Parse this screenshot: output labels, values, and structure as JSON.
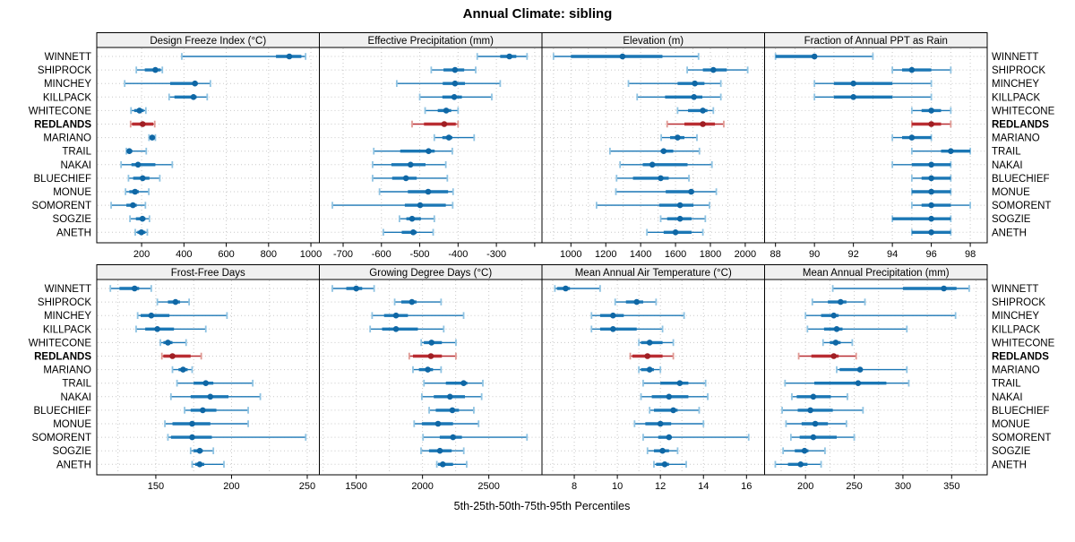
{
  "title": "Annual Climate: sibling",
  "footer": "5th-25th-50th-75th-95th Percentiles",
  "colors": {
    "blue_main": "#1b77b5",
    "blue_light": "#8fc3e2",
    "blue_dot": "#0f67a5",
    "red_main": "#b92d32",
    "red_light": "#e09a94",
    "red_dot": "#a01f24",
    "grid": "#c8c8c8",
    "panel_border": "#000000",
    "strip_bg": "#f0f0f0"
  },
  "chart_data": {
    "type": "trellis-percentile-dotplot",
    "title": "Annual Climate: sibling",
    "footer": "5th-25th-50th-75th-95th Percentiles",
    "legend_note": "each row shows 5th-25th-50th-75th-95th percentiles; REDLANDS highlighted red",
    "grid": "dotted",
    "stations": [
      "WINNETT",
      "SHIPROCK",
      "MINCHEY",
      "KILLPACK",
      "WHITECONE",
      "REDLANDS",
      "MARIANO",
      "TRAIL",
      "NAKAI",
      "BLUECHIEF",
      "MONUE",
      "SOMORENT",
      "SOGZIE",
      "ANETH"
    ],
    "highlight_station": "REDLANDS",
    "panels": [
      {
        "title": "Design Freeze Index (°C)",
        "xlim": [
          -12,
          1040
        ],
        "ticks": [
          200,
          400,
          600,
          800,
          1000
        ],
        "gridlines": [
          200,
          400,
          600,
          800,
          1000
        ],
        "ticks_unlabeled": [],
        "values": [
          [
            390,
            835,
            898,
            955,
            975
          ],
          [
            175,
            215,
            265,
            290,
            298
          ],
          [
            120,
            335,
            452,
            465,
            525
          ],
          [
            330,
            355,
            445,
            460,
            510
          ],
          [
            150,
            165,
            190,
            210,
            220
          ],
          [
            148,
            155,
            205,
            255,
            262
          ],
          [
            235,
            242,
            250,
            260,
            265
          ],
          [
            128,
            132,
            142,
            156,
            222
          ],
          [
            103,
            152,
            183,
            265,
            345
          ],
          [
            138,
            160,
            205,
            237,
            286
          ],
          [
            124,
            142,
            169,
            187,
            234
          ],
          [
            56,
            128,
            159,
            177,
            218
          ],
          [
            145,
            173,
            204,
            218,
            237
          ],
          [
            170,
            180,
            199,
            218,
            227
          ]
        ]
      },
      {
        "title": "Effective Precipitation (mm)",
        "xlim": [
          -762,
          -181
        ],
        "ticks": [
          -700,
          -600,
          -500,
          -400,
          -300
        ],
        "gridlines": [
          -700,
          -600,
          -500,
          -400,
          -300,
          -200
        ],
        "ticks_unlabeled": [
          -200
        ],
        "values": [
          [
            -350,
            -290,
            -266,
            -248,
            -220
          ],
          [
            -470,
            -438,
            -408,
            -384,
            -354
          ],
          [
            -560,
            -440,
            -408,
            -382,
            -290
          ],
          [
            -500,
            -441,
            -410,
            -390,
            -312
          ],
          [
            -486,
            -453,
            -431,
            -418,
            -400
          ],
          [
            -520,
            -489,
            -436,
            -406,
            -400
          ],
          [
            -462,
            -441,
            -424,
            -415,
            -358
          ],
          [
            -620,
            -551,
            -477,
            -461,
            -415
          ],
          [
            -623,
            -574,
            -524,
            -485,
            -432
          ],
          [
            -623,
            -572,
            -536,
            -508,
            -428
          ],
          [
            -605,
            -531,
            -478,
            -426,
            -413
          ],
          [
            -728,
            -539,
            -499,
            -432,
            -414
          ],
          [
            -553,
            -535,
            -520,
            -497,
            -462
          ],
          [
            -595,
            -547,
            -517,
            -508,
            -465
          ]
        ]
      },
      {
        "title": "Elevation (m)",
        "xlim": [
          834,
          2111
        ],
        "ticks": [
          1000,
          1200,
          1400,
          1600,
          1800,
          2000
        ],
        "gridlines": [
          900,
          1000,
          1100,
          1200,
          1300,
          1400,
          1500,
          1600,
          1700,
          1800,
          1900,
          2000,
          2100
        ],
        "ticks_unlabeled": [],
        "values": [
          [
            900,
            1000,
            1296,
            1525,
            1732
          ],
          [
            1667,
            1757,
            1817,
            1894,
            2014
          ],
          [
            1330,
            1612,
            1711,
            1766,
            1860
          ],
          [
            1380,
            1540,
            1706,
            1754,
            1860
          ],
          [
            1612,
            1672,
            1757,
            1783,
            1817
          ],
          [
            1552,
            1651,
            1757,
            1826,
            1877
          ],
          [
            1518,
            1569,
            1612,
            1651,
            1723
          ],
          [
            1224,
            1515,
            1532,
            1587,
            1737
          ],
          [
            1282,
            1412,
            1467,
            1669,
            1809
          ],
          [
            1262,
            1356,
            1515,
            1561,
            1677
          ],
          [
            1258,
            1544,
            1690,
            1706,
            1834
          ],
          [
            1147,
            1506,
            1626,
            1703,
            1795
          ],
          [
            1515,
            1552,
            1626,
            1692,
            1771
          ],
          [
            1436,
            1532,
            1600,
            1692,
            1757
          ]
        ]
      },
      {
        "title": "Fraction of Annual PPT as Rain",
        "xlim": [
          87.44,
          98.87
        ],
        "ticks": [
          88,
          90,
          92,
          94,
          96,
          98
        ],
        "gridlines": [
          88,
          89,
          90,
          91,
          92,
          93,
          94,
          95,
          96,
          97,
          98
        ],
        "ticks_unlabeled": [],
        "values": [
          [
            88,
            88,
            90,
            90,
            93
          ],
          [
            94,
            94.5,
            95,
            96,
            97
          ],
          [
            90,
            91,
            92,
            94,
            96
          ],
          [
            90,
            91,
            92,
            94,
            96
          ],
          [
            95,
            95.5,
            96,
            96.5,
            97
          ],
          [
            95,
            95,
            96,
            96.5,
            97
          ],
          [
            94,
            94.5,
            95,
            96,
            96
          ],
          [
            95,
            96.5,
            97,
            98,
            98
          ],
          [
            94,
            95,
            96,
            97,
            97
          ],
          [
            95,
            95.5,
            96,
            97,
            97
          ],
          [
            95,
            95,
            96,
            97,
            97
          ],
          [
            95,
            95.5,
            96,
            97,
            98
          ],
          [
            94,
            94,
            96,
            97,
            97
          ],
          [
            95,
            95,
            96,
            97,
            97
          ]
        ]
      },
      {
        "title": "Frost-Free Days",
        "xlim": [
          111,
          258
        ],
        "ticks": [
          150,
          200,
          250
        ],
        "gridlines": [
          125,
          150,
          175,
          200,
          225,
          250
        ],
        "ticks_unlabeled": [],
        "values": [
          [
            120,
            126,
            136,
            139,
            147
          ],
          [
            151,
            158,
            163,
            166,
            172
          ],
          [
            138,
            140,
            147,
            159,
            197
          ],
          [
            137,
            143,
            151,
            162,
            183
          ],
          [
            153,
            155,
            158,
            161,
            170
          ],
          [
            154,
            155,
            161,
            173,
            180
          ],
          [
            161,
            165,
            168,
            171,
            174
          ],
          [
            164,
            175,
            183,
            188,
            214
          ],
          [
            160,
            173,
            186,
            198,
            219
          ],
          [
            169,
            173,
            181,
            190,
            211
          ],
          [
            156,
            161,
            174,
            186,
            211
          ],
          [
            158,
            160,
            174,
            187,
            249
          ],
          [
            173,
            175,
            179,
            181,
            188
          ],
          [
            174,
            176,
            179,
            182,
            195
          ]
        ]
      },
      {
        "title": "Growing Degree Days (°C)",
        "xlim": [
          1222,
          2901
        ],
        "ticks": [
          1500,
          2000,
          2500
        ],
        "gridlines": [
          1250,
          1500,
          1750,
          2000,
          2250,
          2500,
          2750
        ],
        "ticks_unlabeled": [],
        "values": [
          [
            1320,
            1425,
            1500,
            1545,
            1635
          ],
          [
            1790,
            1840,
            1920,
            1955,
            2140
          ],
          [
            1620,
            1710,
            1800,
            1890,
            2310
          ],
          [
            1605,
            1695,
            1800,
            1965,
            2160
          ],
          [
            1990,
            2010,
            2068,
            2146,
            2252
          ],
          [
            1900,
            1928,
            2063,
            2146,
            2252
          ],
          [
            1928,
            1973,
            2040,
            2079,
            2140
          ],
          [
            2011,
            2176,
            2310,
            2338,
            2455
          ],
          [
            1995,
            2085,
            2207,
            2320,
            2446
          ],
          [
            2050,
            2100,
            2225,
            2275,
            2387
          ],
          [
            1937,
            1995,
            2117,
            2230,
            2423
          ],
          [
            2004,
            2130,
            2230,
            2297,
            2788
          ],
          [
            1989,
            2049,
            2131,
            2220,
            2311
          ],
          [
            2108,
            2117,
            2153,
            2230,
            2333
          ]
        ]
      },
      {
        "title": "Mean Annual Air Temperature (°C)",
        "xlim": [
          6.5,
          16.84
        ],
        "ticks": [
          8,
          10,
          12,
          14,
          16
        ],
        "gridlines": [
          7,
          8,
          9,
          10,
          11,
          12,
          13,
          14,
          15,
          16
        ],
        "ticks_unlabeled": [],
        "values": [
          [
            7.1,
            7.2,
            7.6,
            7.8,
            9.2
          ],
          [
            9.9,
            10.4,
            10.9,
            11.2,
            11.8
          ],
          [
            8.8,
            9.2,
            9.8,
            10.3,
            13.1
          ],
          [
            8.8,
            9.2,
            9.8,
            10.9,
            12.1
          ],
          [
            11.0,
            11.1,
            11.5,
            12.1,
            12.6
          ],
          [
            10.6,
            10.7,
            11.4,
            12.1,
            12.6
          ],
          [
            11.0,
            11.1,
            11.5,
            11.7,
            12.0
          ],
          [
            11.2,
            12.0,
            12.9,
            13.3,
            14.1
          ],
          [
            11.1,
            11.6,
            12.4,
            13.3,
            14.2
          ],
          [
            11.5,
            11.7,
            12.6,
            12.8,
            13.8
          ],
          [
            10.8,
            11.3,
            12.0,
            12.5,
            14.0
          ],
          [
            11.2,
            11.9,
            12.4,
            12.5,
            16.1
          ],
          [
            11.4,
            11.7,
            12.1,
            12.4,
            12.8
          ],
          [
            11.7,
            11.8,
            12.2,
            12.4,
            13.2
          ]
        ]
      },
      {
        "title": "Mean Annual Precipitation (mm)",
        "xlim": [
          158,
          386.5
        ],
        "ticks": [
          200,
          250,
          300,
          350
        ],
        "gridlines": [
          175,
          200,
          225,
          250,
          275,
          300,
          325,
          350,
          375
        ],
        "ticks_unlabeled": [],
        "values": [
          [
            228,
            300,
            342,
            355,
            368
          ],
          [
            207,
            223,
            236,
            242,
            261
          ],
          [
            200,
            216,
            229,
            234,
            354
          ],
          [
            202,
            219,
            232,
            238,
            304
          ],
          [
            218,
            225,
            231,
            236,
            248
          ],
          [
            193,
            206,
            229,
            234,
            252
          ],
          [
            232,
            235,
            256,
            258,
            304
          ],
          [
            179,
            209,
            254,
            283,
            306
          ],
          [
            186,
            191,
            208,
            226,
            243
          ],
          [
            176,
            192,
            205,
            228,
            259
          ],
          [
            180,
            196,
            210,
            223,
            242
          ],
          [
            185,
            194,
            208,
            232,
            250
          ],
          [
            177,
            189,
            199,
            203,
            220
          ],
          [
            169,
            182,
            195,
            202,
            216
          ]
        ]
      }
    ]
  }
}
